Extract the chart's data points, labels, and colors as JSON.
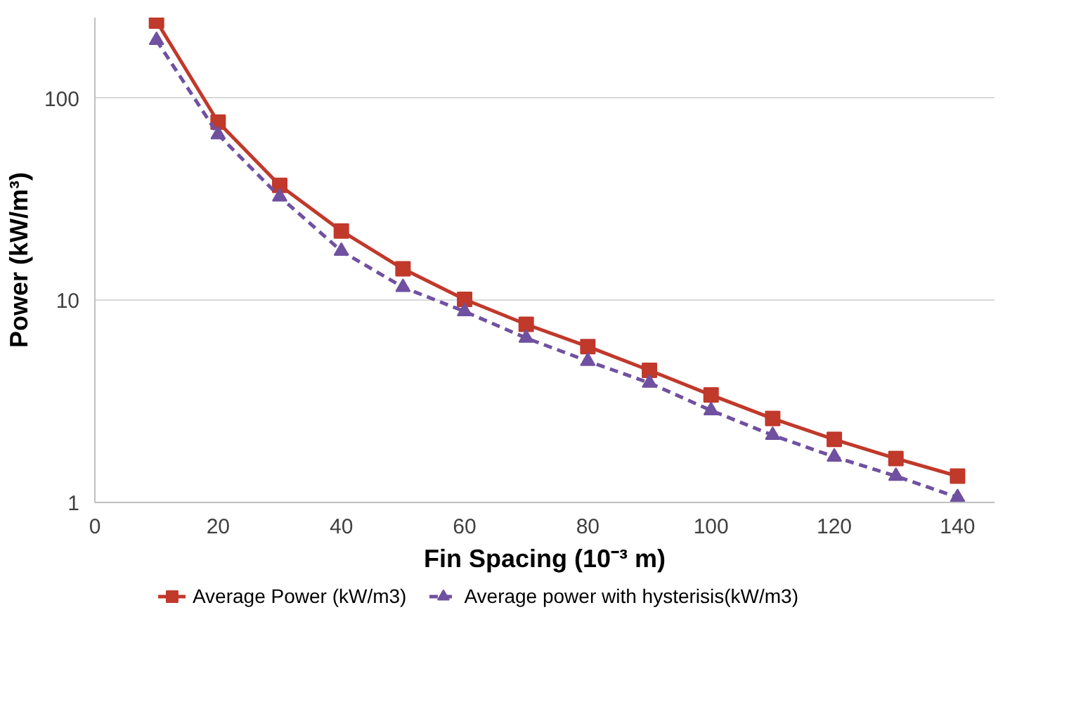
{
  "chart_data": {
    "type": "line",
    "xlabel": "Fin Spacing (10⁻³ m)",
    "ylabel": "Power (kW/m³)",
    "x": [
      10,
      20,
      30,
      40,
      50,
      60,
      70,
      80,
      90,
      100,
      110,
      120,
      130,
      140
    ],
    "series": [
      {
        "name": "Average Power (kW/m3)",
        "color": "#c0392b",
        "marker": "square",
        "line_style": "solid",
        "values": [
          240,
          76,
          37,
          22,
          14.3,
          10.1,
          7.6,
          5.9,
          4.5,
          3.4,
          2.6,
          2.05,
          1.65,
          1.35
        ]
      },
      {
        "name": "Average power with hysterisis(kW/m3)",
        "color": "#7051a0",
        "marker": "triangle",
        "line_style": "dashed",
        "values": [
          193,
          66,
          32.5,
          17.5,
          11.6,
          8.8,
          6.5,
          5.0,
          3.9,
          2.85,
          2.15,
          1.68,
          1.35,
          1.06
        ]
      }
    ],
    "xlim": [
      0,
      146
    ],
    "xticks": [
      0,
      20,
      40,
      60,
      80,
      100,
      120,
      140
    ],
    "ylim": [
      1,
      250
    ],
    "yticks": [
      1,
      10,
      100
    ],
    "log": "y",
    "grid": "y",
    "legend": "bottom"
  }
}
